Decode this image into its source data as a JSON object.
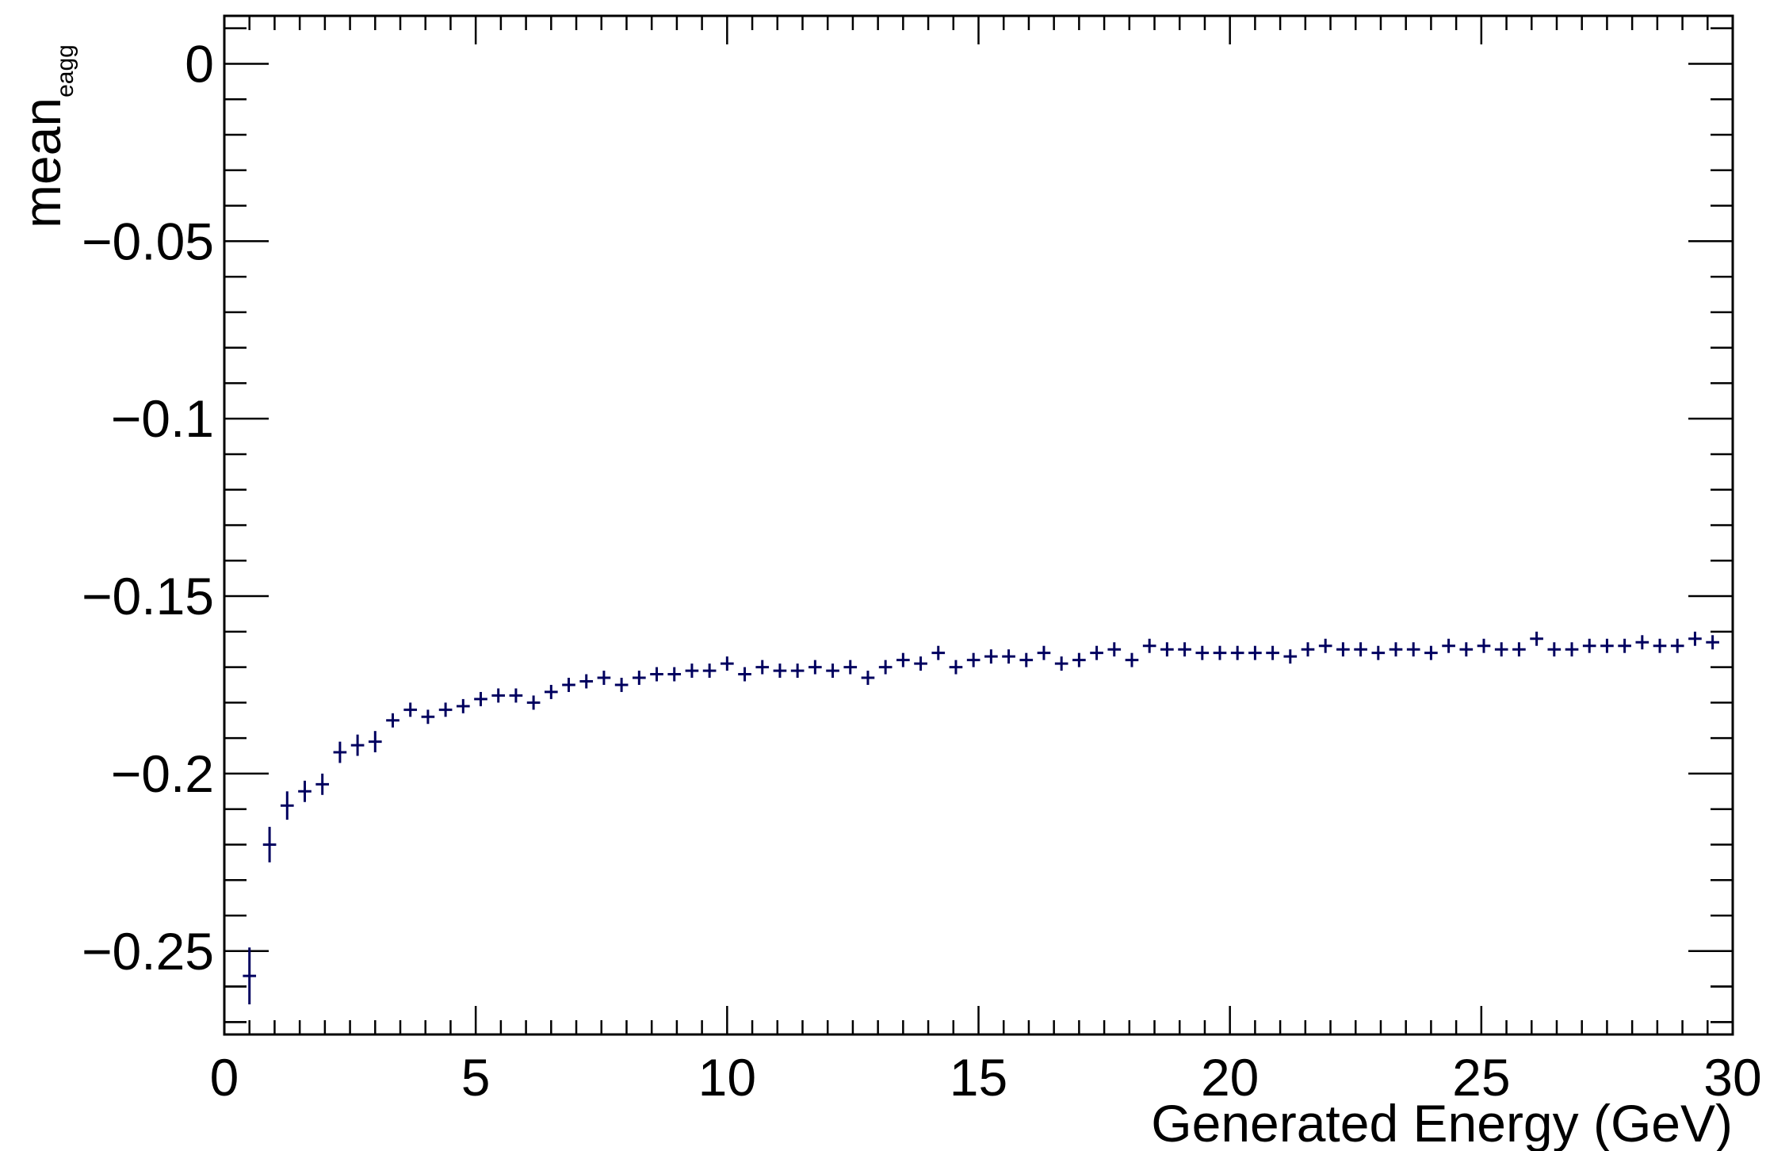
{
  "chart_data": {
    "type": "scatter",
    "title": "",
    "xlabel": "Generated Energy (GeV)",
    "ylabel_main": "mean",
    "ylabel_sub": "e_agg",
    "xlim": [
      0,
      30
    ],
    "ylim": [
      -0.2735,
      0.0135
    ],
    "grid": false,
    "legend": "none",
    "marker_color": "#00005f",
    "x_ticks": [
      0,
      5,
      10,
      15,
      20,
      25,
      30
    ],
    "x_tick_labels": [
      "0",
      "5",
      "10",
      "15",
      "20",
      "25",
      "30"
    ],
    "y_ticks": [
      0,
      -0.05,
      -0.1,
      -0.15,
      -0.2,
      -0.25
    ],
    "y_tick_labels": [
      "0",
      "−0.05",
      "−0.1",
      "−0.15",
      "−0.2",
      "−0.25"
    ],
    "x_bin_width": 0.35,
    "series": [
      {
        "x": [
          0.5,
          0.9,
          1.25,
          1.6,
          1.95,
          2.3,
          2.65,
          3.0,
          3.35,
          3.7,
          4.05,
          4.4,
          4.75,
          5.1,
          5.45,
          5.8,
          6.15,
          6.5,
          6.85,
          7.2,
          7.55,
          7.9,
          8.25,
          8.6,
          8.95,
          9.3,
          9.65,
          10.0,
          10.35,
          10.7,
          11.05,
          11.4,
          11.75,
          12.1,
          12.45,
          12.8,
          13.15,
          13.5,
          13.85,
          14.2,
          14.55,
          14.9,
          15.25,
          15.6,
          15.95,
          16.3,
          16.65,
          17.0,
          17.35,
          17.7,
          18.05,
          18.4,
          18.75,
          19.1,
          19.45,
          19.8,
          20.15,
          20.5,
          20.85,
          21.2,
          21.55,
          21.9,
          22.25,
          22.6,
          22.95,
          23.3,
          23.65,
          24.0,
          24.35,
          24.7,
          25.05,
          25.4,
          25.75,
          26.1,
          26.45,
          26.8,
          27.15,
          27.5,
          27.85,
          28.2,
          28.55,
          28.9,
          29.25,
          29.6
        ],
        "y": [
          -0.257,
          -0.22,
          -0.209,
          -0.205,
          -0.203,
          -0.194,
          -0.192,
          -0.191,
          -0.185,
          -0.182,
          -0.184,
          -0.182,
          -0.181,
          -0.179,
          -0.178,
          -0.178,
          -0.18,
          -0.177,
          -0.175,
          -0.174,
          -0.173,
          -0.175,
          -0.173,
          -0.172,
          -0.172,
          -0.171,
          -0.171,
          -0.169,
          -0.172,
          -0.17,
          -0.171,
          -0.171,
          -0.17,
          -0.171,
          -0.17,
          -0.173,
          -0.17,
          -0.168,
          -0.169,
          -0.166,
          -0.17,
          -0.168,
          -0.167,
          -0.167,
          -0.168,
          -0.166,
          -0.169,
          -0.168,
          -0.166,
          -0.165,
          -0.168,
          -0.164,
          -0.165,
          -0.165,
          -0.166,
          -0.166,
          -0.166,
          -0.166,
          -0.166,
          -0.167,
          -0.165,
          -0.164,
          -0.165,
          -0.165,
          -0.166,
          -0.165,
          -0.165,
          -0.166,
          -0.164,
          -0.165,
          -0.164,
          -0.165,
          -0.165,
          -0.162,
          -0.165,
          -0.165,
          -0.164,
          -0.164,
          -0.164,
          -0.163,
          -0.164,
          -0.164,
          -0.162,
          -0.163
        ],
        "yerr": [
          0.008,
          0.005,
          0.004,
          0.003,
          0.003,
          0.003,
          0.003,
          0.003,
          0.002,
          0.002,
          0.002,
          0.002,
          0.002,
          0.002,
          0.002,
          0.002,
          0.002,
          0.002,
          0.002,
          0.002,
          0.002,
          0.002,
          0.002,
          0.002,
          0.002,
          0.002,
          0.002,
          0.002,
          0.002,
          0.002,
          0.002,
          0.002,
          0.002,
          0.002,
          0.002,
          0.002,
          0.002,
          0.002,
          0.002,
          0.002,
          0.002,
          0.002,
          0.002,
          0.002,
          0.002,
          0.002,
          0.002,
          0.002,
          0.002,
          0.002,
          0.002,
          0.002,
          0.002,
          0.002,
          0.002,
          0.002,
          0.002,
          0.002,
          0.002,
          0.002,
          0.002,
          0.002,
          0.002,
          0.002,
          0.002,
          0.002,
          0.002,
          0.002,
          0.002,
          0.002,
          0.002,
          0.002,
          0.002,
          0.002,
          0.002,
          0.002,
          0.002,
          0.002,
          0.002,
          0.002,
          0.002,
          0.002,
          0.002,
          0.002
        ]
      }
    ]
  }
}
